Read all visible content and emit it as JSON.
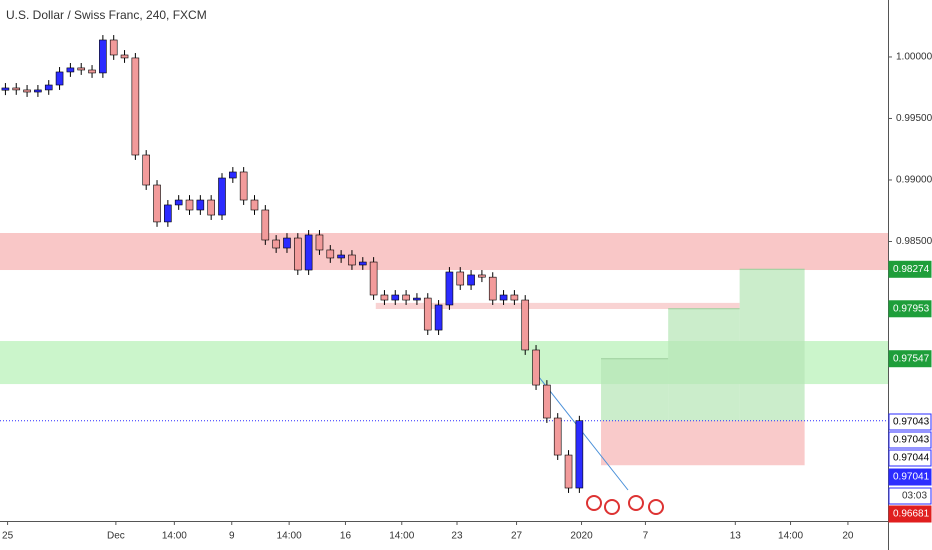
{
  "chart_data": {
    "type": "candlestick",
    "title": "U.S. Dollar / Swiss Franc, 240, FXCM",
    "open": [
      0.9973,
      0.99748,
      0.99732,
      0.99715,
      0.99732,
      0.99772,
      0.99878,
      0.99911,
      0.99894,
      0.9987,
      1.00138,
      1.00016,
      0.99992,
      0.99203,
      0.98959,
      0.98659,
      0.98797,
      0.98837,
      0.98756,
      0.98837,
      0.98715,
      0.99016,
      0.99065,
      0.98837,
      0.98756,
      0.98512,
      0.98447,
      0.98528,
      0.98268,
      0.98553,
      0.98431,
      0.98366,
      0.9839,
      0.98309,
      0.98333,
      0.98065,
      0.98024,
      0.98065,
      0.98024,
      0.9804,
      0.9778,
      0.97984,
      0.98252,
      0.98146,
      0.98228,
      0.9821,
      0.98024,
      0.98065,
      0.98024,
      0.97618,
      0.97333,
      0.97065,
      0.96764,
      0.96496
    ],
    "high": [
      0.99788,
      0.99788,
      0.99772,
      0.99772,
      0.99812,
      0.99918,
      0.99951,
      0.99951,
      0.99934,
      1.00178,
      1.00178,
      1.00056,
      1.00032,
      0.99243,
      0.98999,
      0.98837,
      0.98877,
      0.98877,
      0.98877,
      0.98877,
      0.99056,
      0.99105,
      0.99105,
      0.98877,
      0.98796,
      0.98552,
      0.98568,
      0.98568,
      0.98593,
      0.98593,
      0.98471,
      0.9843,
      0.9843,
      0.98373,
      0.98373,
      0.98105,
      0.98105,
      0.98105,
      0.9808,
      0.9808,
      0.98024,
      0.98292,
      0.98292,
      0.98268,
      0.98268,
      0.9825,
      0.98105,
      0.98105,
      0.98064,
      0.97658,
      0.97373,
      0.97105,
      0.96804,
      0.97083
    ],
    "low": [
      0.9969,
      0.99692,
      0.99675,
      0.99675,
      0.99692,
      0.99732,
      0.99838,
      0.99854,
      0.9983,
      0.9983,
      0.99976,
      0.99952,
      0.99163,
      0.98919,
      0.98619,
      0.98619,
      0.98757,
      0.98716,
      0.98716,
      0.98675,
      0.98675,
      0.98976,
      0.98797,
      0.98716,
      0.98472,
      0.98407,
      0.98407,
      0.98228,
      0.98228,
      0.98391,
      0.98326,
      0.98326,
      0.98269,
      0.98269,
      0.98025,
      0.97984,
      0.97984,
      0.97984,
      0.97984,
      0.9774,
      0.9774,
      0.97944,
      0.98106,
      0.98106,
      0.9817,
      0.97984,
      0.97984,
      0.97984,
      0.97578,
      0.97293,
      0.97025,
      0.96724,
      0.96456,
      0.96456
    ],
    "close": [
      0.99748,
      0.99732,
      0.99715,
      0.99732,
      0.99772,
      0.99878,
      0.99911,
      0.99894,
      0.9987,
      1.00138,
      1.00016,
      0.99992,
      0.99203,
      0.98959,
      0.98659,
      0.98797,
      0.98837,
      0.98756,
      0.98837,
      0.98715,
      0.99016,
      0.99065,
      0.98837,
      0.98756,
      0.98512,
      0.98447,
      0.98528,
      0.98268,
      0.98553,
      0.98431,
      0.98366,
      0.9839,
      0.98309,
      0.98333,
      0.98065,
      0.98024,
      0.98065,
      0.98024,
      0.9804,
      0.9778,
      0.97984,
      0.98252,
      0.98146,
      0.98228,
      0.9821,
      0.98024,
      0.98065,
      0.98024,
      0.97618,
      0.97333,
      0.97065,
      0.96764,
      0.96496,
      0.97043
    ],
    "up_color": "#2b2bff",
    "down_color": "#f29b9b",
    "xlim": [
      -0.5,
      81.5
    ],
    "xticks": [
      {
        "value": 0.2,
        "label": "25"
      },
      {
        "value": 10.2,
        "label": "Dec"
      },
      {
        "value": 15.6,
        "label": "14:00"
      },
      {
        "value": 20.9,
        "label": "9"
      },
      {
        "value": 26.2,
        "label": "14:00"
      },
      {
        "value": 31.4,
        "label": "16"
      },
      {
        "value": 36.6,
        "label": "14:00"
      },
      {
        "value": 41.7,
        "label": "23"
      },
      {
        "value": 47.2,
        "label": "27"
      },
      {
        "value": 53.2,
        "label": "2020"
      },
      {
        "value": 59.1,
        "label": "7"
      },
      {
        "value": 67.4,
        "label": "13"
      },
      {
        "value": 72.5,
        "label": "14:00"
      },
      {
        "value": 77.8,
        "label": "20"
      }
    ],
    "ylim": [
      0.96236,
      1.00463
    ],
    "yticks": [
      {
        "value": 1.0,
        "label": "1.00000"
      },
      {
        "value": 0.995,
        "label": "0.99500"
      },
      {
        "value": 0.99,
        "label": "0.99000"
      },
      {
        "value": 0.985,
        "label": "0.98500"
      }
    ],
    "zones": [
      {
        "from": 0.98569,
        "to": 0.98268,
        "color": "#f7b4b4"
      },
      {
        "from": 0.97691,
        "to": 0.97341,
        "color": "#b9f2b9"
      },
      {
        "from": 0.98001,
        "to": 0.97951,
        "color": "#f7c4c4"
      }
    ],
    "position": {
      "entry": 0.97043,
      "targets": [
        0.97547,
        0.97953,
        0.98274
      ],
      "stop": 0.96681
    },
    "last_price_line": 0.97043,
    "price_labels": [
      {
        "value": 0.98274,
        "bg": "#1e9e3a",
        "fg": "#ffffff"
      },
      {
        "value": 0.97953,
        "bg": "#1e9e3a",
        "fg": "#ffffff"
      },
      {
        "value": 0.97547,
        "bg": "#1e9e3a",
        "fg": "#ffffff"
      },
      {
        "value": 0.97043,
        "bg": "#ffffff",
        "fg": "#000000"
      },
      {
        "value": 0.97043,
        "bg": "#ffffff",
        "fg": "#000000"
      },
      {
        "value": 0.97044,
        "bg": "#ffffff",
        "fg": "#000000"
      },
      {
        "value": 0.97041,
        "bg": "#2b2bff",
        "fg": "#ffffff"
      },
      {
        "value": 0.96681,
        "bg": "#e01e1e",
        "fg": "#ffffff"
      }
    ],
    "countdown": "03:03"
  }
}
